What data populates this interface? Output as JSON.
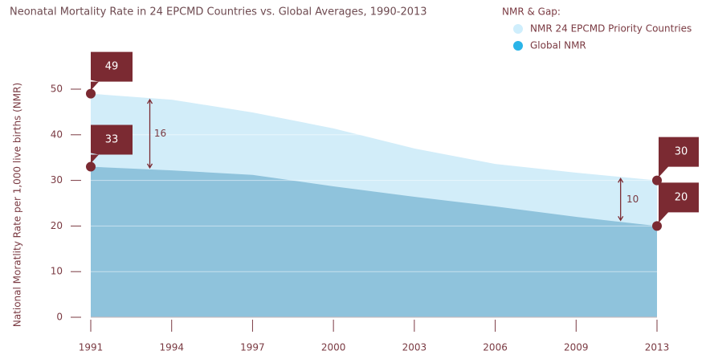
{
  "chart_data": {
    "type": "area",
    "title": "Neonatal Mortality Rate in 24 EPCMD Countries vs. Global Averages, 1990-2013",
    "y_label": "National Moratlity Rate per 1,000  live births (NMR)",
    "legend_title": "NMR & Gap:",
    "categories": [
      "1991",
      "1994",
      "1997",
      "2000",
      "2003",
      "2006",
      "2009",
      "2013"
    ],
    "series": [
      {
        "name": "NMR 24 EPCMD Priority Countries",
        "color": "#d2edf9",
        "values": [
          49,
          47.7,
          44.9,
          41.4,
          37,
          33.6,
          31.7,
          30
        ]
      },
      {
        "name": "Global NMR",
        "color": "#8fc3dc",
        "values": [
          33,
          32.2,
          31.2,
          28.7,
          26.4,
          24.3,
          22,
          20
        ]
      }
    ],
    "annotations": [
      "16",
      "10"
    ],
    "ylim": [
      0,
      50
    ],
    "yticks": [
      0,
      10,
      20,
      30,
      40,
      50
    ],
    "grid": true,
    "legend_position": "top-right"
  }
}
